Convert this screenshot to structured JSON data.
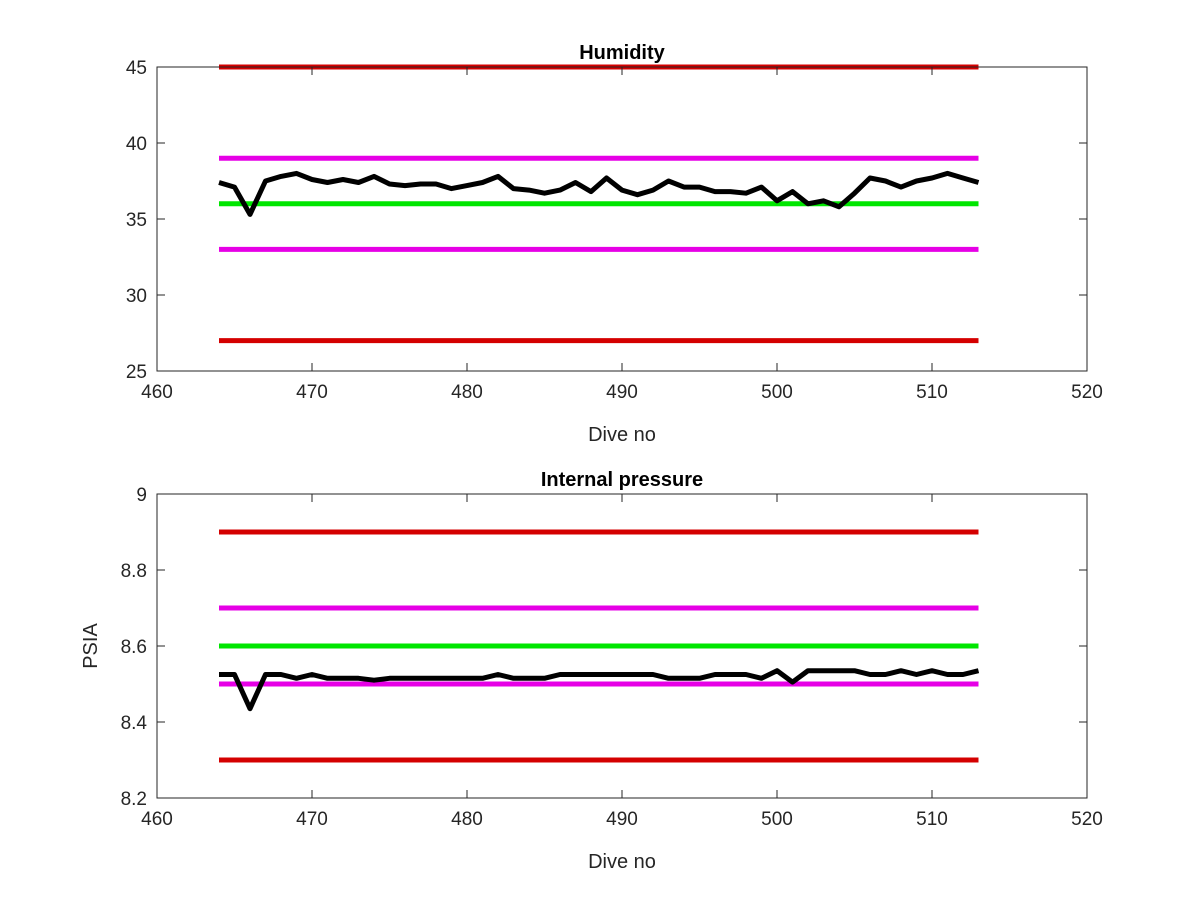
{
  "chart_data": [
    {
      "type": "line",
      "title": "Humidity",
      "xlabel": "Dive no",
      "ylabel": "",
      "xlim": [
        460,
        520
      ],
      "ylim": [
        25,
        45
      ],
      "xticks": [
        "460",
        "470",
        "480",
        "490",
        "500",
        "510",
        "520"
      ],
      "yticks": [
        "25",
        "30",
        "35",
        "40",
        "45"
      ],
      "grid": false,
      "reference_lines": [
        {
          "y": 45,
          "x": [
            464,
            513
          ],
          "color": "#d40000"
        },
        {
          "y": 39,
          "x": [
            464,
            513
          ],
          "color": "#e600e6"
        },
        {
          "y": 36,
          "x": [
            464,
            513
          ],
          "color": "#00e600"
        },
        {
          "y": 33,
          "x": [
            464,
            513
          ],
          "color": "#e600e6"
        },
        {
          "y": 27,
          "x": [
            464,
            513
          ],
          "color": "#d40000"
        }
      ],
      "series": [
        {
          "color": "#000000",
          "x": [
            464,
            465,
            466,
            467,
            468,
            469,
            470,
            471,
            472,
            473,
            474,
            475,
            476,
            477,
            478,
            479,
            480,
            481,
            482,
            483,
            484,
            485,
            486,
            487,
            488,
            489,
            490,
            491,
            492,
            493,
            494,
            495,
            496,
            497,
            498,
            499,
            500,
            501,
            502,
            503,
            504,
            505,
            506,
            507,
            508,
            509,
            510,
            511,
            512,
            513
          ],
          "values": [
            37.4,
            37.1,
            35.3,
            37.5,
            37.8,
            38.0,
            37.6,
            37.4,
            37.6,
            37.4,
            37.8,
            37.3,
            37.2,
            37.3,
            37.3,
            37.0,
            37.2,
            37.4,
            37.8,
            37.0,
            36.9,
            36.7,
            36.9,
            37.4,
            36.8,
            37.7,
            36.9,
            36.6,
            36.9,
            37.5,
            37.1,
            37.1,
            36.8,
            36.8,
            36.7,
            37.1,
            36.2,
            36.8,
            36.0,
            36.2,
            35.8,
            36.7,
            37.7,
            37.5,
            37.1,
            37.5,
            37.7,
            38.0,
            37.7,
            37.4
          ]
        }
      ]
    },
    {
      "type": "line",
      "title": "Internal pressure",
      "xlabel": "Dive no",
      "ylabel": "PSIA",
      "xlim": [
        460,
        520
      ],
      "ylim": [
        8.2,
        9.0
      ],
      "xticks": [
        "460",
        "470",
        "480",
        "490",
        "500",
        "510",
        "520"
      ],
      "yticks": [
        "8.2",
        "8.4",
        "8.6",
        "8.8",
        "9"
      ],
      "grid": false,
      "reference_lines": [
        {
          "y": 8.9,
          "x": [
            464,
            513
          ],
          "color": "#d40000"
        },
        {
          "y": 8.7,
          "x": [
            464,
            513
          ],
          "color": "#e600e6"
        },
        {
          "y": 8.6,
          "x": [
            464,
            513
          ],
          "color": "#00e600"
        },
        {
          "y": 8.5,
          "x": [
            464,
            513
          ],
          "color": "#e600e6"
        },
        {
          "y": 8.3,
          "x": [
            464,
            513
          ],
          "color": "#d40000"
        }
      ],
      "series": [
        {
          "color": "#000000",
          "x": [
            464,
            465,
            466,
            467,
            468,
            469,
            470,
            471,
            472,
            473,
            474,
            475,
            476,
            477,
            478,
            479,
            480,
            481,
            482,
            483,
            484,
            485,
            486,
            487,
            488,
            489,
            490,
            491,
            492,
            493,
            494,
            495,
            496,
            497,
            498,
            499,
            500,
            501,
            502,
            503,
            504,
            505,
            506,
            507,
            508,
            509,
            510,
            511,
            512,
            513
          ],
          "values": [
            8.525,
            8.525,
            8.435,
            8.525,
            8.525,
            8.515,
            8.525,
            8.515,
            8.515,
            8.515,
            8.51,
            8.515,
            8.515,
            8.515,
            8.515,
            8.515,
            8.515,
            8.515,
            8.525,
            8.515,
            8.515,
            8.515,
            8.525,
            8.525,
            8.525,
            8.525,
            8.525,
            8.525,
            8.525,
            8.515,
            8.515,
            8.515,
            8.525,
            8.525,
            8.525,
            8.515,
            8.535,
            8.505,
            8.535,
            8.535,
            8.535,
            8.535,
            8.525,
            8.525,
            8.535,
            8.525,
            8.535,
            8.525,
            8.525,
            8.535
          ]
        }
      ]
    }
  ]
}
